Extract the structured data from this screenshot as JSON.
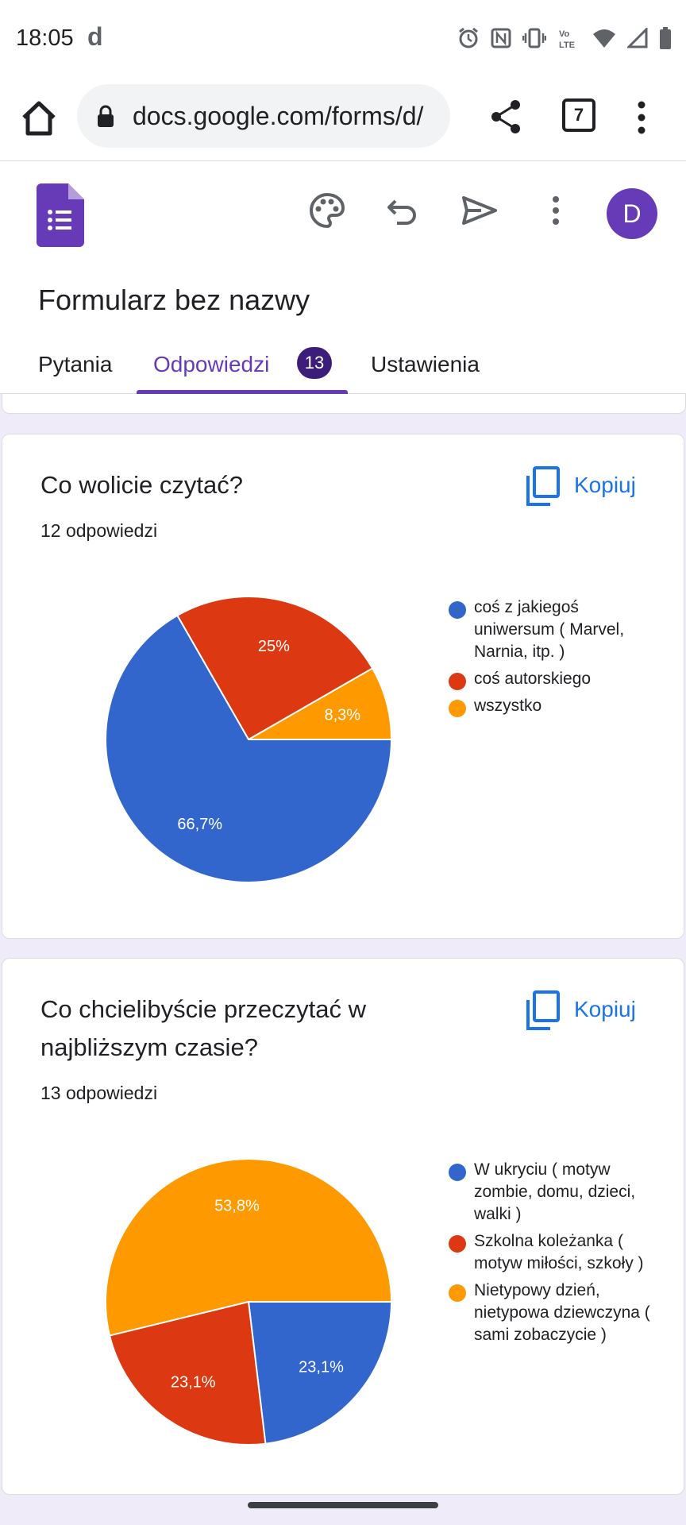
{
  "status_bar": {
    "time": "18:05",
    "app_icon": "d",
    "icons": [
      "alarm-icon",
      "nfc-icon",
      "vibrate-icon",
      "volte-icon",
      "wifi-icon",
      "signal-icon",
      "battery-icon"
    ],
    "volte_text": "Vo LTE"
  },
  "browser": {
    "url": "docs.google.com/forms/d/",
    "tab_count": "7"
  },
  "forms": {
    "title": "Formularz bez nazwy",
    "avatar_initial": "D",
    "tabs": [
      {
        "label": "Pytania"
      },
      {
        "label": "Odpowiedzi",
        "badge": "13",
        "active": true
      },
      {
        "label": "Ustawienia"
      }
    ]
  },
  "colors": {
    "accent": "#673ab7",
    "blue": "#3366cc",
    "red": "#dc3912",
    "orange": "#ff9900",
    "link": "#1a73e8"
  },
  "questions": [
    {
      "title": "Co wolicie czytać?",
      "responses": "12 odpowiedzi",
      "copy_label": "Kopiuj",
      "chart_data": {
        "type": "pie",
        "slices": [
          {
            "label": "coś z jakiegoś uniwersum ( Marvel, Narnia, itp. )",
            "value": 66.7,
            "display": "66,7%",
            "color": "#3366cc"
          },
          {
            "label": "coś autorskiego",
            "value": 25,
            "display": "25%",
            "color": "#dc3912"
          },
          {
            "label": "wszystko",
            "value": 8.3,
            "display": "8,3%",
            "color": "#ff9900"
          }
        ],
        "legend_position": "right"
      }
    },
    {
      "title": "Co chcielibyście przeczytać w najbliższym czasie?",
      "responses": "13 odpowiedzi",
      "copy_label": "Kopiuj",
      "chart_data": {
        "type": "pie",
        "slices": [
          {
            "label": "W ukryciu ( motyw zombie, domu, dzieci, walki )",
            "value": 23.1,
            "display": "23,1%",
            "color": "#3366cc"
          },
          {
            "label": "Szkolna koleżanka ( motyw miłości, szkoły )",
            "value": 23.1,
            "display": "23,1%",
            "color": "#dc3912"
          },
          {
            "label": "Nietypowy dzień, nietypowa dziewczyna ( sami zobaczycie )",
            "value": 53.8,
            "display": "53,8%",
            "color": "#ff9900"
          }
        ],
        "legend_position": "right"
      }
    }
  ]
}
